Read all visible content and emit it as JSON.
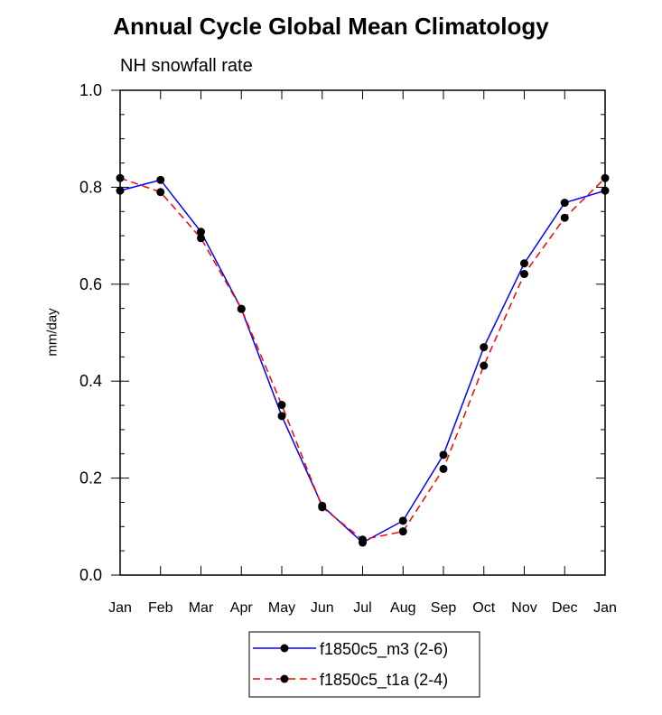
{
  "chart_data": {
    "type": "line",
    "title": "Annual Cycle Global Mean Climatology",
    "subtitle": "NH snowfall rate",
    "xlabel": "",
    "ylabel": "mm/day",
    "categories": [
      "Jan",
      "Feb",
      "Mar",
      "Apr",
      "May",
      "Jun",
      "Jul",
      "Aug",
      "Sep",
      "Oct",
      "Nov",
      "Dec",
      "Jan"
    ],
    "ylim": [
      0.0,
      1.0
    ],
    "yticks": [
      "0.0",
      "0.2",
      "0.4",
      "0.6",
      "0.8",
      "1.0"
    ],
    "grid": false,
    "legend_position": "bottom-center",
    "series": [
      {
        "name": "f1850c5_m3 (2-6)",
        "color": "#0000ff",
        "style": "solid",
        "values": [
          0.793,
          0.815,
          0.708,
          0.549,
          0.328,
          0.143,
          0.067,
          0.112,
          0.248,
          0.47,
          0.643,
          0.768,
          0.793
        ]
      },
      {
        "name": "f1850c5_t1a (2-4)",
        "color": "#ff0000",
        "style": "dashed",
        "values": [
          0.819,
          0.79,
          0.695,
          0.549,
          0.351,
          0.14,
          0.073,
          0.09,
          0.219,
          0.432,
          0.621,
          0.737,
          0.819
        ]
      }
    ]
  }
}
